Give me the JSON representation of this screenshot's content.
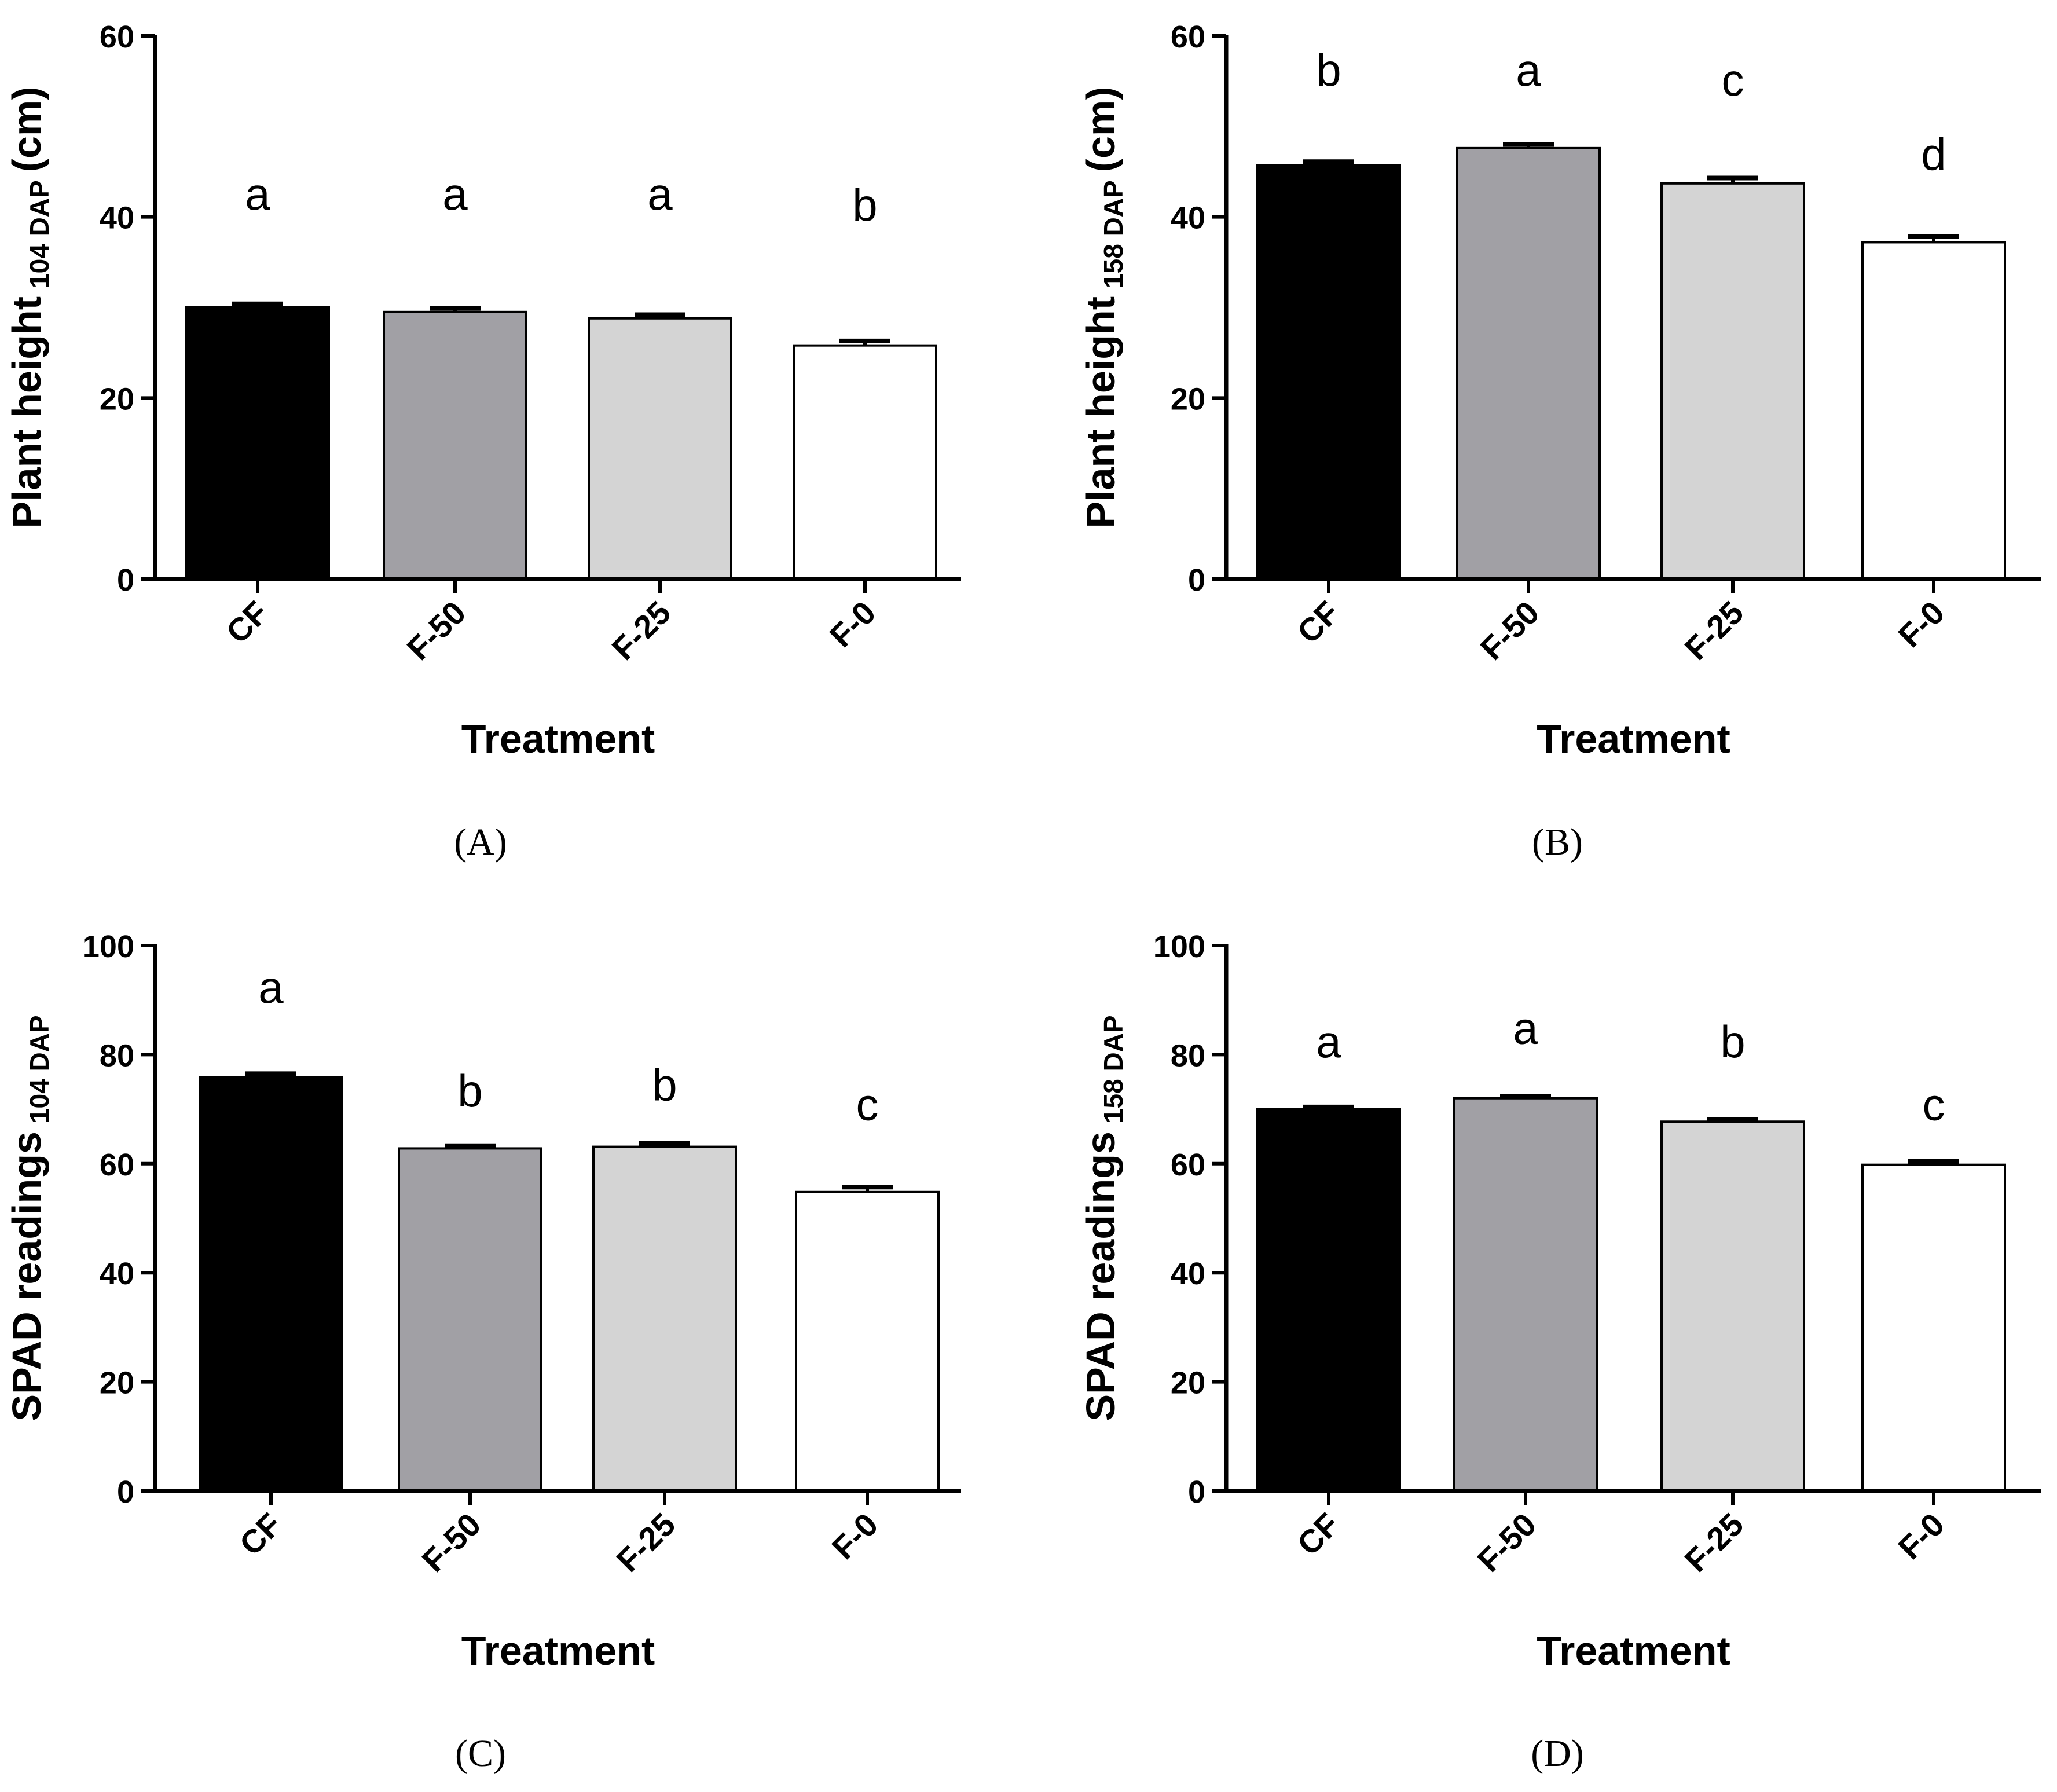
{
  "figure": {
    "x_axis_label": "Treatment",
    "bar_colors": [
      "#000000",
      "#a1a0a5",
      "#d4d4d4",
      "#ffffff"
    ]
  },
  "chart_data": [
    {
      "panel": "(A)",
      "type": "bar",
      "categories": [
        "CF",
        "F-50",
        "F-25",
        "F-0"
      ],
      "values": [
        30.0,
        29.5,
        28.8,
        25.8
      ],
      "errors": [
        0.4,
        0.4,
        0.4,
        0.5
      ],
      "letters": [
        "a",
        "a",
        "a",
        "b"
      ],
      "letter_values": [
        40.8,
        40.8,
        40.8,
        39.6
      ],
      "ylabel_main": "Plant height",
      "ylabel_sub": "104 DAP",
      "ylabel_unit": "(cm)",
      "xlabel": "Treatment",
      "ylim": [
        0,
        60
      ],
      "yticks": [
        0,
        20,
        40,
        60
      ]
    },
    {
      "panel": "(B)",
      "type": "bar",
      "categories": [
        "CF",
        "F-50",
        "F-25",
        "F-0"
      ],
      "values": [
        45.7,
        47.6,
        43.7,
        37.2
      ],
      "errors": [
        0.4,
        0.4,
        0.6,
        0.6
      ],
      "letters": [
        "b",
        "a",
        "c",
        "d"
      ],
      "letter_values": [
        54.5,
        54.5,
        53.4,
        45.2
      ],
      "ylabel_main": "Plant height",
      "ylabel_sub": "158 DAP",
      "ylabel_unit": "(cm)",
      "xlabel": "Treatment",
      "ylim": [
        0,
        60
      ],
      "yticks": [
        0,
        20,
        40,
        60
      ]
    },
    {
      "panel": "(C)",
      "type": "bar",
      "categories": [
        "CF",
        "F-50",
        "F-25",
        "F-0"
      ],
      "values": [
        75.8,
        62.8,
        63.1,
        54.8
      ],
      "errors": [
        0.7,
        0.5,
        0.6,
        0.9
      ],
      "letters": [
        "a",
        "b",
        "b",
        "c"
      ],
      "letter_values": [
        89.5,
        70.5,
        71.6,
        68.0
      ],
      "ylabel_main": "SPAD readings",
      "ylabel_sub": "104 DAP",
      "ylabel_unit": "",
      "xlabel": "Treatment",
      "ylim": [
        0,
        100
      ],
      "yticks": [
        0,
        20,
        40,
        60,
        80,
        100
      ]
    },
    {
      "panel": "(D)",
      "type": "bar",
      "categories": [
        "CF",
        "F-50",
        "F-25",
        "F-0"
      ],
      "values": [
        70.0,
        72.0,
        67.7,
        59.8
      ],
      "errors": [
        0.4,
        0.4,
        0.4,
        0.6
      ],
      "letters": [
        "a",
        "a",
        "b",
        "c"
      ],
      "letter_values": [
        79.5,
        82.0,
        79.5,
        68.0
      ],
      "ylabel_main": "SPAD readings",
      "ylabel_sub": "158 DAP",
      "ylabel_unit": "",
      "xlabel": "Treatment",
      "ylim": [
        0,
        100
      ],
      "yticks": [
        0,
        20,
        40,
        60,
        80,
        100
      ]
    }
  ]
}
